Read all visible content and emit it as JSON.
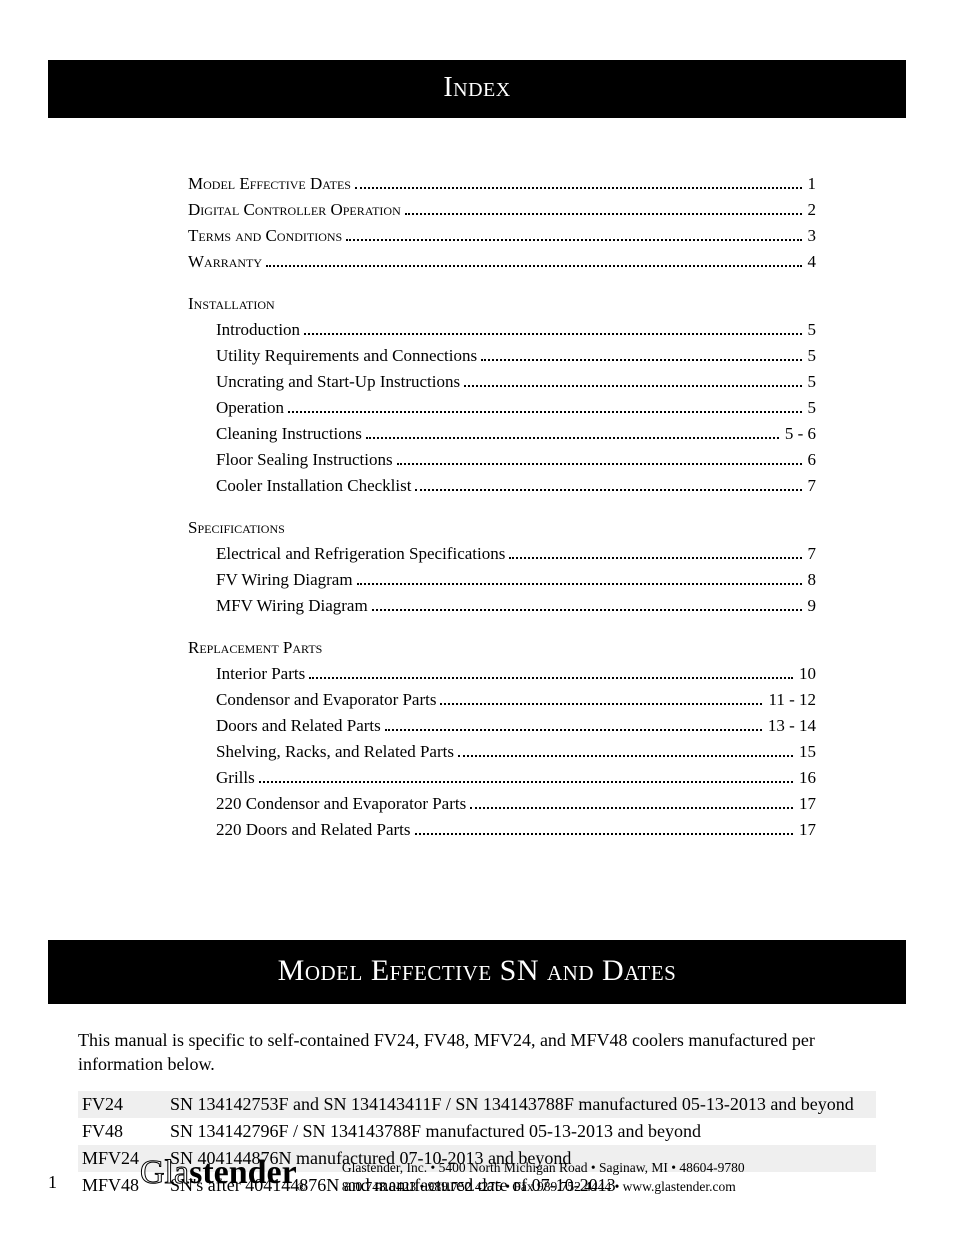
{
  "header1": "Index",
  "header2": "Model Effective SN and Dates",
  "toc_top": [
    {
      "label": "Model Effective Dates",
      "page": "1"
    },
    {
      "label": "Digital Controller Operation",
      "page": "2"
    },
    {
      "label": "Terms and Conditions",
      "page": "3"
    },
    {
      "label": "Warranty",
      "page": "4"
    }
  ],
  "toc_sections": [
    {
      "title": "Installation",
      "items": [
        {
          "label": "Introduction",
          "page": "5"
        },
        {
          "label": "Utility Requirements and Connections",
          "page": "5"
        },
        {
          "label": "Uncrating and Start-Up Instructions",
          "page": "5"
        },
        {
          "label": "Operation",
          "page": "5"
        },
        {
          "label": "Cleaning Instructions",
          "page": "5 - 6"
        },
        {
          "label": "Floor Sealing Instructions",
          "page": "6"
        },
        {
          "label": "Cooler Installation Checklist",
          "page": "7"
        }
      ]
    },
    {
      "title": "Specifications",
      "items": [
        {
          "label": "Electrical and Refrigeration Specifications",
          "page": "7"
        },
        {
          "label": "FV Wiring Diagram",
          "page": "8"
        },
        {
          "label": "MFV Wiring Diagram",
          "page": "9"
        }
      ]
    },
    {
      "title": "Replacement Parts",
      "items": [
        {
          "label": "Interior Parts",
          "page": "10"
        },
        {
          "label": "Condensor and Evaporator Parts",
          "page": "11 - 12"
        },
        {
          "label": "Doors and Related Parts",
          "page": "13 - 14"
        },
        {
          "label": "Shelving, Racks, and Related Parts",
          "page": "15"
        },
        {
          "label": "Grills",
          "page": "16"
        },
        {
          "label": "220 Condensor and Evaporator Parts",
          "page": "17"
        },
        {
          "label": "220 Doors and Related Parts",
          "page": "17"
        }
      ]
    }
  ],
  "intro_paragraph": "This manual is specific to self-contained FV24, FV48, MFV24, and MFV48 coolers manufactured per information below.",
  "models": [
    {
      "model": "FV24",
      "desc": "SN 134142753F and SN 134143411F / SN 134143788F manufactured 05-13-2013 and beyond"
    },
    {
      "model": "FV48",
      "desc": "SN 134142796F / SN 134143788F manufactured 05-13-2013 and beyond"
    },
    {
      "model": "MFV24",
      "desc": "SN 404144876N manufactured 07-10-2013 and beyond"
    },
    {
      "model": "MFV48",
      "desc": "SN's after 404144876N and manufactured date of 07-10-2013"
    }
  ],
  "footer": {
    "page_number": "1",
    "logo_outline": "Gla",
    "logo_solid": "stender",
    "logo_reg": "®",
    "line1": "Glastender, Inc.  •  5400 North Michigan Road  •  Saginaw, MI  •  48604-9780",
    "line2": "800.748.0423  •  989.752.4275  •  Fax 989.752.4444  •  www.glastender.com"
  }
}
